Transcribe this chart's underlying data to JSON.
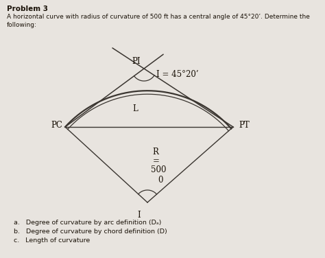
{
  "title_line1": "Problem 3",
  "title_line2": "A horizontal curve with radius of curvature of 500 ft has a central angle of 45°20’. Determine the",
  "title_line3": "following:",
  "label_PI": "PI",
  "label_PC": "PC",
  "label_PT": "PT",
  "label_L": "L",
  "label_I": "I = 45°20’",
  "label_R1": "R",
  "label_R2": "=",
  "label_R3": "500",
  "label_R4": "0",
  "label_center": "I",
  "items_a": "a.   Degree of curvature by arc definition (Dₐ)",
  "items_b": "b.   Degree of curvature by chord definition (D⁣)",
  "items_c": "c.   Length of curvature",
  "bg_color": "#e8e4df",
  "line_color": "#3a3530",
  "text_color": "#1a1208",
  "fig_width": 4.74,
  "fig_height": 3.76,
  "dpi": 100
}
